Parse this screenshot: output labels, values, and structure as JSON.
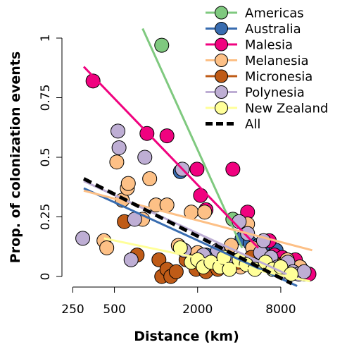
{
  "chart_data": {
    "type": "scatter",
    "title": "",
    "xlabel": "Distance (km)",
    "ylabel": "Prop. of colonization events",
    "x_scale": "log",
    "xlim": [
      240,
      16000
    ],
    "ylim": [
      -0.04,
      1.05
    ],
    "x_ticks": [
      {
        "value": 250,
        "label": "250"
      },
      {
        "value": 500,
        "label": "500"
      },
      {
        "value": 2000,
        "label": "2000"
      },
      {
        "value": 8000,
        "label": "8000"
      }
    ],
    "y_ticks": [
      {
        "value": 0,
        "label": "0"
      },
      {
        "value": 0.25,
        "label": "0.25"
      },
      {
        "value": 0.5,
        "label": "0.5"
      },
      {
        "value": 0.75,
        "label": "0.75"
      },
      {
        "value": 1,
        "label": "1"
      }
    ],
    "legend_position": "top-right",
    "series": [
      {
        "name": "Americas",
        "color": "#7fc97f",
        "points": [
          [
            1100,
            0.97
          ],
          [
            3600,
            0.24
          ],
          [
            5200,
            0.09
          ],
          [
            8800,
            0.05
          ],
          [
            10500,
            0.03
          ],
          [
            12000,
            0.01
          ]
        ],
        "fit": [
          [
            800,
            1.04
          ],
          [
            4200,
            0.12
          ]
        ]
      },
      {
        "name": "Australia",
        "color": "#386cb0",
        "points": [
          [
            1500,
            0.44
          ],
          [
            2300,
            0.09
          ],
          [
            3100,
            0.07
          ],
          [
            4200,
            0.16
          ],
          [
            4800,
            0.14
          ],
          [
            5500,
            0.13
          ],
          [
            6500,
            0.14
          ],
          [
            7400,
            0.11
          ],
          [
            8300,
            0.07
          ],
          [
            9800,
            0.06
          ],
          [
            11000,
            0.04
          ],
          [
            12500,
            0.01
          ]
        ],
        "fit": [
          [
            300,
            0.37
          ],
          [
            10500,
            -0.04
          ]
        ]
      },
      {
        "name": "Malesia",
        "color": "#f0027f",
        "points": [
          [
            350,
            0.82
          ],
          [
            860,
            0.6
          ],
          [
            1200,
            0.59
          ],
          [
            1980,
            0.45
          ],
          [
            2100,
            0.34
          ],
          [
            2300,
            0.28
          ],
          [
            3600,
            0.45
          ],
          [
            4600,
            0.27
          ],
          [
            6600,
            0.15
          ],
          [
            7200,
            0.09
          ],
          [
            8200,
            0.08
          ],
          [
            10200,
            0.07
          ],
          [
            12800,
            0.01
          ]
        ],
        "fit": [
          [
            300,
            0.88
          ],
          [
            5500,
            0.12
          ]
        ]
      },
      {
        "name": "Melanesia",
        "color": "#fdc086",
        "points": [
          [
            420,
            0.15
          ],
          [
            440,
            0.12
          ],
          [
            520,
            0.48
          ],
          [
            570,
            0.32
          ],
          [
            620,
            0.37
          ],
          [
            630,
            0.39
          ],
          [
            800,
            0.24
          ],
          [
            900,
            0.41
          ],
          [
            1000,
            0.3
          ],
          [
            1200,
            0.3
          ],
          [
            1450,
            0.13
          ],
          [
            1800,
            0.27
          ],
          [
            2000,
            0.1
          ],
          [
            2250,
            0.27
          ],
          [
            3500,
            0.13
          ],
          [
            4100,
            0.04
          ],
          [
            4600,
            0.22
          ],
          [
            5000,
            0.12
          ],
          [
            5600,
            0.09
          ],
          [
            6500,
            0.06
          ],
          [
            7600,
            0.05
          ],
          [
            8900,
            0.07
          ],
          [
            11000,
            0.04
          ]
        ],
        "fit": [
          [
            300,
            0.36
          ],
          [
            13500,
            0.11
          ]
        ]
      },
      {
        "name": "Micronesia",
        "color": "#bf5b17",
        "points": [
          [
            590,
            0.23
          ],
          [
            730,
            0.09
          ],
          [
            1050,
            0.07
          ],
          [
            1100,
            0.0
          ],
          [
            1200,
            0.03
          ],
          [
            1280,
            0.0
          ],
          [
            1400,
            0.02
          ],
          [
            1650,
            0.07
          ],
          [
            1950,
            0.03
          ],
          [
            2300,
            0.02
          ],
          [
            2800,
            0.03
          ],
          [
            3900,
            0.06
          ],
          [
            4900,
            0.08
          ],
          [
            6000,
            0.07
          ],
          [
            7400,
            0.05
          ]
        ],
        "fit": []
      },
      {
        "name": "Polynesia",
        "color": "#beaed4",
        "points": [
          [
            295,
            0.16
          ],
          [
            530,
            0.61
          ],
          [
            540,
            0.54
          ],
          [
            660,
            0.07
          ],
          [
            700,
            0.24
          ],
          [
            830,
            0.5
          ],
          [
            1550,
            0.45
          ],
          [
            1600,
            0.11
          ],
          [
            2200,
            0.09
          ],
          [
            2800,
            0.11
          ],
          [
            3300,
            0.07
          ],
          [
            4000,
            0.23
          ],
          [
            4600,
            0.18
          ],
          [
            5000,
            0.05
          ],
          [
            5700,
            0.1
          ],
          [
            6000,
            0.15
          ],
          [
            6800,
            0.08
          ],
          [
            7600,
            0.04
          ],
          [
            8200,
            0.02
          ],
          [
            9000,
            0.06
          ],
          [
            9800,
            0.02
          ],
          [
            10800,
            0.01
          ],
          [
            11800,
            0.02
          ]
        ],
        "fit": [
          [
            300,
            0.4
          ],
          [
            8800,
            0.01
          ]
        ]
      },
      {
        "name": "New Zealand",
        "color": "#ffff99",
        "points": [
          [
            1500,
            0.12
          ],
          [
            1800,
            0.06
          ],
          [
            2000,
            0.07
          ],
          [
            2200,
            0.04
          ],
          [
            2500,
            0.06
          ],
          [
            2900,
            0.04
          ],
          [
            3100,
            0.08
          ],
          [
            3400,
            0.03
          ],
          [
            4000,
            0.07
          ],
          [
            4500,
            0.05
          ],
          [
            5200,
            0.03
          ],
          [
            6200,
            0.06
          ],
          [
            7000,
            0.03
          ],
          [
            8000,
            0.04
          ],
          [
            9500,
            0.01
          ]
        ],
        "fit": [
          [
            420,
            0.16
          ],
          [
            13000,
            -0.02
          ]
        ]
      },
      {
        "name": "All",
        "color": "#000000",
        "dashed": true,
        "points": [],
        "fit": [
          [
            300,
            0.41
          ],
          [
            9600,
            -0.03
          ]
        ]
      }
    ]
  }
}
